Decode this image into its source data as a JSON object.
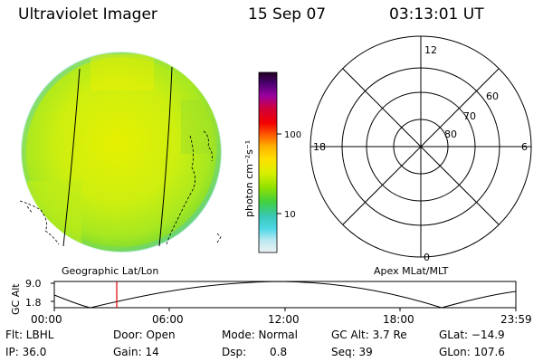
{
  "header": {
    "instrument": "Ultraviolet Imager",
    "date": "15 Sep 07",
    "time": "03:13:01 UT"
  },
  "left_panel": {
    "label": "Geographic Lat/Lon"
  },
  "colorbar": {
    "unit": "photon cm⁻²s⁻¹",
    "ticks": [
      "100",
      "10"
    ],
    "colors": [
      "#200020",
      "#3a0050",
      "#5a0090",
      "#8a00b0",
      "#b0008a",
      "#d0002a",
      "#f20000",
      "#ff5a00",
      "#ffa000",
      "#ffd800",
      "#e8f000",
      "#b8f000",
      "#7ae000",
      "#3ad060",
      "#38c8b8",
      "#40d8e0",
      "#a0e8f0",
      "#d0eef4",
      "#e8f0f4"
    ]
  },
  "polar": {
    "label": "Apex MLat/MLT",
    "mlt_labels": [
      "12",
      "18",
      "6",
      "0"
    ],
    "mlat_labels": [
      "60",
      "70",
      "80"
    ]
  },
  "altitude_plot": {
    "ylabel": "GC Alt",
    "yticks": [
      "9.0",
      "1.8"
    ],
    "xticks": [
      "00:00",
      "06:00",
      "12:00",
      "18:00",
      "23:59"
    ],
    "marker_color": "#e00000"
  },
  "footer": {
    "flt": "Flt: LBHL",
    "door": "Door: Open",
    "mode": "Mode: Normal",
    "gc_alt": "GC Alt: 3.7 Re",
    "glat": "GLat: −14.9",
    "ip": "IP: 36.0",
    "gain": "Gain: 14",
    "dsp_label": "Dsp:",
    "dsp_value": "0.8",
    "seq": "Seq: 39",
    "glon": "GLon: 107.6"
  }
}
